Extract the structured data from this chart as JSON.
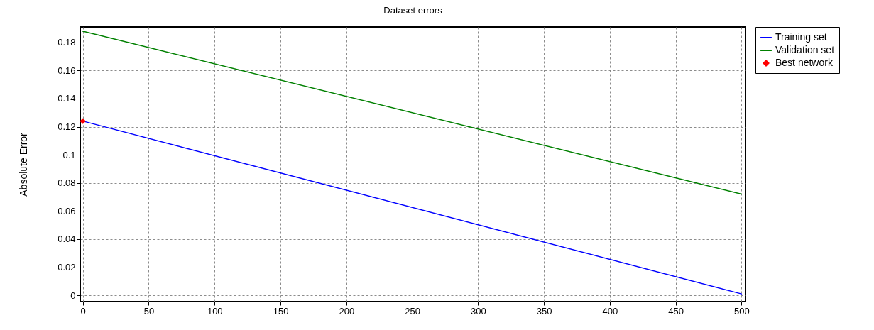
{
  "chart_data": {
    "type": "line",
    "title": "Dataset errors",
    "ylabel": "Absolute Error",
    "xlim": [
      -2,
      503
    ],
    "xticks": [
      0,
      50,
      100,
      150,
      200,
      250,
      300,
      350,
      400,
      450,
      500
    ],
    "ylim": [
      -0.0045,
      0.191
    ],
    "yticks": [
      0,
      0.02,
      0.04,
      0.06,
      0.08,
      0.1,
      0.12,
      0.14,
      0.16,
      0.18
    ],
    "x": [
      0,
      500
    ],
    "grid": true,
    "legend": "top right",
    "line_style": "solid",
    "series": [
      {
        "name": "Training set",
        "color": "#0000ff",
        "values": [
          0.124,
          0.001
        ]
      },
      {
        "name": "Validation set",
        "color": "#008000",
        "values": [
          0.188,
          0.072
        ]
      },
      {
        "name": "Best network",
        "type": "scatter",
        "marker": "diamond",
        "color": "#ff0000",
        "x": [
          0
        ],
        "values": [
          0.124
        ]
      }
    ]
  }
}
